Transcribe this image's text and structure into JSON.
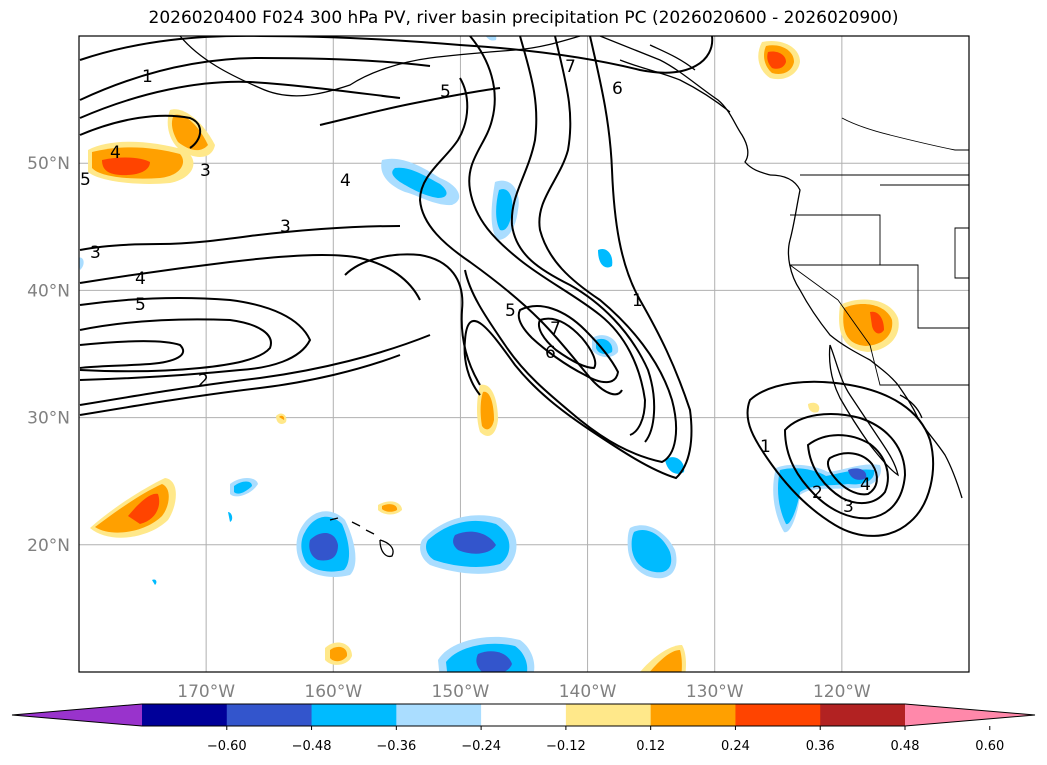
{
  "title": "2026020400 F024 300 hPa PV, river basin precipitation PC (2026020600 - 2026020900)",
  "map": {
    "lon_range": [
      -180,
      -110
    ],
    "lat_range": [
      10,
      60
    ],
    "lat_ticks": [
      {
        "value": 50,
        "label": "50°N"
      },
      {
        "value": 40,
        "label": "40°N"
      },
      {
        "value": 30,
        "label": "30°N"
      },
      {
        "value": 20,
        "label": "20°N"
      }
    ],
    "lon_ticks": [
      {
        "value": -170,
        "label": "170°W"
      },
      {
        "value": -160,
        "label": "160°W"
      },
      {
        "value": -150,
        "label": "150°W"
      },
      {
        "value": -140,
        "label": "140°W"
      },
      {
        "value": -130,
        "label": "130°W"
      },
      {
        "value": -120,
        "label": "120°W"
      }
    ],
    "contour_labels": [
      "1",
      "2",
      "3",
      "4",
      "5",
      "6",
      "7"
    ]
  },
  "colorbar": {
    "colors": [
      "#9933cc",
      "#000099",
      "#3355cc",
      "#00bbff",
      "#aaddff",
      "#ffffff",
      "#ffe88a",
      "#ffa000",
      "#ff4400",
      "#b22222",
      "#ff88aa"
    ],
    "ticks": [
      "−0.60",
      "−0.48",
      "−0.36",
      "−0.24",
      "−0.12",
      "0.12",
      "0.24",
      "0.36",
      "0.48",
      "0.60"
    ]
  }
}
